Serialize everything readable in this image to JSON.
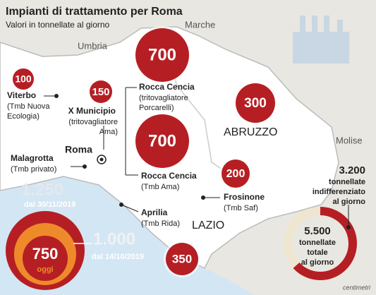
{
  "header": {
    "title": "Impianti di trattamento per Roma",
    "subtitle": "Valori in tonnellate al giorno"
  },
  "regions": [
    "Marche",
    "Umbria",
    "ABRUZZO",
    "Molise",
    "LAZIO"
  ],
  "city": "Roma",
  "circles": [
    100,
    150,
    700,
    700,
    300,
    200,
    350
  ],
  "labels": [
    {
      "name": "Viterbo",
      "detail": [
        "(Tmb Nuova",
        "Ecologia)"
      ]
    },
    {
      "name": "X Municipio",
      "detail": [
        "(tritovagliatore",
        "Ama)"
      ]
    },
    {
      "name": "Rocca Cencia",
      "detail": [
        "(tritovagliatore",
        "Porcarelli)"
      ]
    },
    {
      "name": "Rocca Cencia",
      "detail": [
        "(Tmb Ama)"
      ]
    },
    {
      "name": "Malagrotta",
      "detail": [
        "(Tmb privato)"
      ]
    },
    {
      "name": "Frosinone",
      "detail": [
        "(Tmb Saf)"
      ]
    },
    {
      "name": "Aprilia",
      "detail": [
        "(Tmb Rida)"
      ]
    }
  ],
  "malagrotta_history": [
    {
      "value": "1.250",
      "date": "dal 30/11/2019"
    },
    {
      "value": "1.000",
      "date": "dal 14/10/2019"
    },
    {
      "value": "750",
      "date": "oggi"
    }
  ],
  "totals": {
    "undifferentiated": {
      "value": "3.200",
      "lines": [
        "tonnellate",
        "indifferenziato",
        "al giorno"
      ]
    },
    "total": {
      "value": "5.500",
      "lines": [
        "tonnellate",
        "totale",
        "al giorno"
      ]
    }
  },
  "credit": "centimetri"
}
